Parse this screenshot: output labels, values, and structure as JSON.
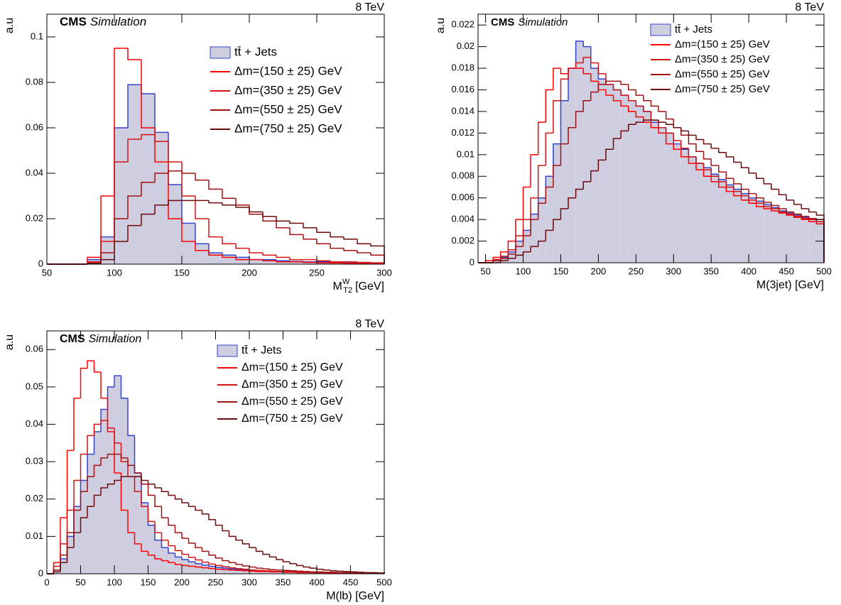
{
  "chart_data": [
    {
      "type": "histogram",
      "ylabel": "a.u",
      "cms": "CMS",
      "cms_extra": "Simulation",
      "energy": "8 TeV",
      "xlabel": "M",
      "xlabel_sub": "T2",
      "xlabel_sup": "W",
      "xlabel_unit": "[GeV]",
      "xlim": [
        50,
        300
      ],
      "ylim": [
        0,
        0.11
      ],
      "xticks": [
        50,
        100,
        150,
        200,
        250,
        300
      ],
      "yticks": [
        0,
        0.02,
        0.04,
        0.06,
        0.08,
        0.1
      ],
      "bins": [
        50,
        60,
        70,
        80,
        90,
        100,
        110,
        120,
        130,
        140,
        150,
        160,
        170,
        180,
        190,
        200,
        210,
        220,
        230,
        240,
        250,
        260,
        270,
        280,
        290,
        300
      ],
      "series": [
        {
          "name": "tt̄ + Jets",
          "color": "#3344cc",
          "fill": "#cfcde0",
          "values": [
            0,
            0,
            0,
            0.002,
            0.012,
            0.06,
            0.079,
            0.075,
            0.058,
            0.035,
            0.018,
            0.009,
            0.005,
            0.004,
            0.003,
            0.002,
            0.002,
            0.0015,
            0.0012,
            0.001,
            0.001,
            0.0008,
            0.0006,
            0.0005,
            0.0004
          ]
        },
        {
          "name": "Δm=(150 ± 25) GeV",
          "color": "#ff0000",
          "values": [
            0,
            0,
            0,
            0.003,
            0.03,
            0.095,
            0.09,
            0.06,
            0.045,
            0.02,
            0.01,
            0.006,
            0.004,
            0.003,
            0.002,
            0.002,
            0.0015,
            0.001,
            0.001,
            0.0008,
            0.0006,
            0.0005,
            0.0004,
            0.0003,
            0.0002
          ]
        },
        {
          "name": "Δm=(350 ± 25) GeV",
          "color": "#d41414",
          "values": [
            0,
            0,
            0,
            0.001,
            0.01,
            0.045,
            0.055,
            0.057,
            0.054,
            0.045,
            0.03,
            0.02,
            0.012,
            0.009,
            0.007,
            0.005,
            0.004,
            0.003,
            0.002,
            0.002,
            0.0015,
            0.001,
            0.001,
            0.0008,
            0.0006
          ]
        },
        {
          "name": "Δm=(550 ± 25) GeV",
          "color": "#a01010",
          "values": [
            0,
            0,
            0,
            0.0005,
            0.005,
            0.02,
            0.03,
            0.036,
            0.04,
            0.041,
            0.04,
            0.037,
            0.033,
            0.029,
            0.026,
            0.022,
            0.019,
            0.016,
            0.013,
            0.011,
            0.009,
            0.007,
            0.006,
            0.005,
            0.004
          ]
        },
        {
          "name": "Δm=(750 ± 25) GeV",
          "color": "#6e0a0a",
          "values": [
            0,
            0,
            0,
            0.0002,
            0.002,
            0.01,
            0.017,
            0.022,
            0.026,
            0.028,
            0.028,
            0.028,
            0.027,
            0.026,
            0.025,
            0.023,
            0.021,
            0.019,
            0.018,
            0.016,
            0.014,
            0.012,
            0.011,
            0.009,
            0.008
          ]
        }
      ]
    },
    {
      "type": "histogram",
      "ylabel": "a.u",
      "cms": "CMS",
      "cms_extra": "Simulation",
      "energy": "8 TeV",
      "xlabel": "M(3jet) [GeV]",
      "xlim": [
        40,
        500
      ],
      "ylim": [
        0,
        0.023
      ],
      "xticks": [
        50,
        100,
        150,
        200,
        250,
        300,
        350,
        400,
        450,
        500
      ],
      "yticks": [
        0,
        0.002,
        0.004,
        0.006,
        0.008,
        0.01,
        0.012,
        0.014,
        0.016,
        0.018,
        0.02,
        0.022
      ],
      "bins": [
        40,
        50,
        60,
        70,
        80,
        90,
        100,
        110,
        120,
        130,
        140,
        150,
        160,
        170,
        180,
        190,
        200,
        210,
        220,
        230,
        240,
        250,
        260,
        270,
        280,
        290,
        300,
        310,
        320,
        330,
        340,
        350,
        360,
        370,
        380,
        390,
        400,
        410,
        420,
        430,
        440,
        450,
        460,
        470,
        480,
        490,
        500
      ],
      "series": [
        {
          "name": "tt̄ + Jets",
          "color": "#3344cc",
          "fill": "#cfcde0",
          "values": [
            0,
            0,
            0.0002,
            0.0005,
            0.001,
            0.002,
            0.003,
            0.0045,
            0.006,
            0.008,
            0.011,
            0.015,
            0.018,
            0.0205,
            0.02,
            0.018,
            0.017,
            0.0165,
            0.016,
            0.0155,
            0.015,
            0.0145,
            0.014,
            0.013,
            0.0125,
            0.012,
            0.011,
            0.0105,
            0.0098,
            0.0092,
            0.0088,
            0.0082,
            0.0077,
            0.0072,
            0.0068,
            0.0064,
            0.006,
            0.0057,
            0.0054,
            0.0051,
            0.0048,
            0.0046,
            0.0044,
            0.0042,
            0.004,
            0.0038
          ]
        },
        {
          "name": "Δm=(150 ± 25) GeV",
          "color": "#ff0000",
          "values": [
            0,
            0.0002,
            0.0005,
            0.001,
            0.002,
            0.004,
            0.007,
            0.01,
            0.013,
            0.016,
            0.018,
            0.0175,
            0.018,
            0.018,
            0.0175,
            0.0168,
            0.016,
            0.0155,
            0.015,
            0.0145,
            0.014,
            0.0135,
            0.013,
            0.0125,
            0.012,
            0.011,
            0.0105,
            0.0098,
            0.0092,
            0.0086,
            0.008,
            0.0075,
            0.007,
            0.0066,
            0.0062,
            0.0058,
            0.0055,
            0.0052,
            0.005,
            0.0048,
            0.0046,
            0.0044,
            0.0042,
            0.004,
            0.0038,
            0.0036
          ]
        },
        {
          "name": "Δm=(350 ± 25) GeV",
          "color": "#d41414",
          "values": [
            0,
            0,
            0.0003,
            0.0006,
            0.0012,
            0.0025,
            0.004,
            0.006,
            0.009,
            0.012,
            0.015,
            0.017,
            0.018,
            0.0185,
            0.019,
            0.0185,
            0.0175,
            0.0165,
            0.016,
            0.0155,
            0.015,
            0.0145,
            0.014,
            0.0132,
            0.0125,
            0.012,
            0.0113,
            0.0106,
            0.0098,
            0.0092,
            0.0086,
            0.008,
            0.0075,
            0.007,
            0.0066,
            0.0062,
            0.0058,
            0.0055,
            0.0052,
            0.005,
            0.0047,
            0.0045,
            0.0043,
            0.0041,
            0.004,
            0.0038
          ]
        },
        {
          "name": "Δm=(550 ± 25) GeV",
          "color": "#a01010",
          "values": [
            0,
            0,
            0.0002,
            0.0004,
            0.0008,
            0.0015,
            0.0025,
            0.004,
            0.0055,
            0.007,
            0.009,
            0.011,
            0.0125,
            0.014,
            0.015,
            0.0158,
            0.0165,
            0.0168,
            0.0168,
            0.0165,
            0.016,
            0.0155,
            0.015,
            0.0145,
            0.014,
            0.0133,
            0.0125,
            0.0118,
            0.011,
            0.0103,
            0.0096,
            0.009,
            0.0084,
            0.0078,
            0.0073,
            0.0068,
            0.0064,
            0.006,
            0.0056,
            0.0053,
            0.005,
            0.0047,
            0.0045,
            0.0043,
            0.0041,
            0.004
          ]
        },
        {
          "name": "Δm=(750 ± 25) GeV",
          "color": "#6e0a0a",
          "values": [
            0,
            0,
            0,
            0.0002,
            0.0004,
            0.0007,
            0.001,
            0.0015,
            0.002,
            0.003,
            0.004,
            0.005,
            0.006,
            0.0068,
            0.0075,
            0.0085,
            0.0095,
            0.0105,
            0.0115,
            0.0122,
            0.0128,
            0.013,
            0.0132,
            0.0132,
            0.013,
            0.0128,
            0.0125,
            0.0122,
            0.0118,
            0.0114,
            0.011,
            0.0106,
            0.0102,
            0.0098,
            0.0093,
            0.0088,
            0.0083,
            0.0078,
            0.0073,
            0.0068,
            0.0063,
            0.0058,
            0.0054,
            0.005,
            0.0047,
            0.0044
          ]
        }
      ]
    },
    {
      "type": "histogram",
      "ylabel": "a.u",
      "cms": "CMS",
      "cms_extra": "Simulation",
      "energy": "8 TeV",
      "xlabel": "M(lb) [GeV]",
      "xlim": [
        0,
        500
      ],
      "ylim": [
        0,
        0.065
      ],
      "xticks": [
        0,
        50,
        100,
        150,
        200,
        250,
        300,
        350,
        400,
        450,
        500
      ],
      "yticks": [
        0,
        0.01,
        0.02,
        0.03,
        0.04,
        0.05,
        0.06
      ],
      "bins": [
        0,
        10,
        20,
        30,
        40,
        50,
        60,
        70,
        80,
        90,
        100,
        110,
        120,
        130,
        140,
        150,
        160,
        170,
        180,
        190,
        200,
        210,
        220,
        230,
        240,
        250,
        260,
        270,
        280,
        290,
        300,
        310,
        320,
        330,
        340,
        350,
        360,
        370,
        380,
        390,
        400,
        410,
        420,
        430,
        440,
        450,
        460,
        470,
        480,
        490,
        500
      ],
      "series": [
        {
          "name": "tt̄ + Jets",
          "color": "#3344cc",
          "fill": "#cfcde0",
          "values": [
            0,
            0.001,
            0.004,
            0.01,
            0.018,
            0.025,
            0.032,
            0.038,
            0.044,
            0.05,
            0.053,
            0.047,
            0.037,
            0.027,
            0.019,
            0.013,
            0.009,
            0.007,
            0.0055,
            0.0045,
            0.0038,
            0.0032,
            0.0027,
            0.0023,
            0.002,
            0.0017,
            0.0015,
            0.0013,
            0.0011,
            0.001,
            0.0009,
            0.0008,
            0.0007,
            0.0006,
            0.0006,
            0.0005,
            0.0005,
            0.0004,
            0.0004,
            0.0003,
            0.0003,
            0.0003,
            0.0002,
            0.0002,
            0.0002,
            0.0002,
            0.0001,
            0.0001,
            0.0001,
            0.0001
          ]
        },
        {
          "name": "Δm=(150 ± 25) GeV",
          "color": "#ff0000",
          "values": [
            0,
            0.003,
            0.015,
            0.033,
            0.047,
            0.055,
            0.057,
            0.054,
            0.047,
            0.038,
            0.027,
            0.017,
            0.011,
            0.008,
            0.006,
            0.005,
            0.004,
            0.0035,
            0.003,
            0.0025,
            0.0022,
            0.002,
            0.0018,
            0.0016,
            0.0014,
            0.0012,
            0.0011,
            0.001,
            0.0009,
            0.0008,
            0.0007,
            0.0006,
            0.0006,
            0.0005,
            0.0005,
            0.0004,
            0.0004,
            0.0003,
            0.0003,
            0.0003,
            0.0003,
            0.0002,
            0.0002,
            0.0002,
            0.0002,
            0.0001,
            0.0001,
            0.0001,
            0.0001,
            0.0001
          ]
        },
        {
          "name": "Δm=(350 ± 25) GeV",
          "color": "#d41414",
          "values": [
            0,
            0.002,
            0.008,
            0.017,
            0.025,
            0.032,
            0.037,
            0.04,
            0.041,
            0.039,
            0.035,
            0.03,
            0.026,
            0.022,
            0.018,
            0.014,
            0.011,
            0.009,
            0.0075,
            0.0062,
            0.0052,
            0.0044,
            0.0037,
            0.0031,
            0.0026,
            0.0022,
            0.0019,
            0.0016,
            0.0014,
            0.0012,
            0.001,
            0.0009,
            0.0008,
            0.0007,
            0.0006,
            0.0006,
            0.0005,
            0.0005,
            0.0004,
            0.0004,
            0.0003,
            0.0003,
            0.0003,
            0.0002,
            0.0002,
            0.0002,
            0.0002,
            0.0001,
            0.0001,
            0.0001
          ]
        },
        {
          "name": "Δm=(550 ± 25) GeV",
          "color": "#a01010",
          "values": [
            0,
            0.001,
            0.005,
            0.011,
            0.017,
            0.022,
            0.026,
            0.029,
            0.031,
            0.032,
            0.032,
            0.031,
            0.029,
            0.027,
            0.024,
            0.021,
            0.018,
            0.015,
            0.013,
            0.011,
            0.0095,
            0.0082,
            0.007,
            0.006,
            0.005,
            0.0042,
            0.0035,
            0.003,
            0.0025,
            0.0021,
            0.0018,
            0.0015,
            0.0013,
            0.0011,
            0.001,
            0.0009,
            0.0008,
            0.0007,
            0.0006,
            0.0005,
            0.0005,
            0.0004,
            0.0004,
            0.0003,
            0.0003,
            0.0003,
            0.0002,
            0.0002,
            0.0002,
            0.0002
          ]
        },
        {
          "name": "Δm=(750 ± 25) GeV",
          "color": "#6e0a0a",
          "values": [
            0,
            0.0005,
            0.003,
            0.007,
            0.011,
            0.015,
            0.018,
            0.021,
            0.023,
            0.024,
            0.025,
            0.026,
            0.026,
            0.026,
            0.025,
            0.024,
            0.023,
            0.022,
            0.021,
            0.02,
            0.019,
            0.018,
            0.017,
            0.016,
            0.0145,
            0.013,
            0.0115,
            0.01,
            0.009,
            0.008,
            0.007,
            0.006,
            0.0052,
            0.0045,
            0.0038,
            0.0032,
            0.0027,
            0.0022,
            0.0018,
            0.0015,
            0.0012,
            0.001,
            0.0008,
            0.0007,
            0.0006,
            0.0005,
            0.0004,
            0.0003,
            0.0003,
            0.0002
          ]
        }
      ]
    }
  ]
}
